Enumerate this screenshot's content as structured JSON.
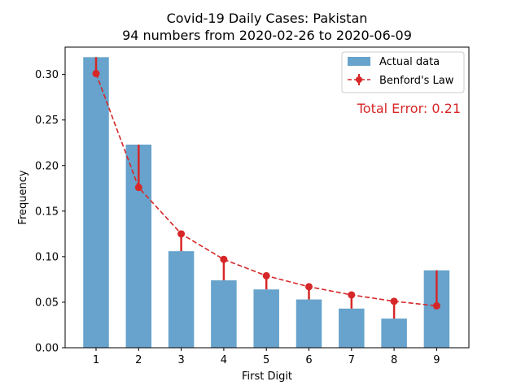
{
  "chart_data": {
    "type": "bar",
    "title": "Covid-19 Daily Cases: Pakistan",
    "subtitle": "94 numbers from 2020-02-26 to 2020-06-09",
    "xlabel": "First Digit",
    "ylabel": "Frequency",
    "categories": [
      "1",
      "2",
      "3",
      "4",
      "5",
      "6",
      "7",
      "8",
      "9"
    ],
    "ylim": [
      0,
      0.33
    ],
    "yticks": [
      "0.00",
      "0.05",
      "0.10",
      "0.15",
      "0.20",
      "0.25",
      "0.30"
    ],
    "ytick_values": [
      0,
      0.05,
      0.1,
      0.15,
      0.2,
      0.25,
      0.3
    ],
    "series": [
      {
        "name": "Actual data",
        "type": "bar",
        "color": "#1f77b4",
        "values": [
          0.319,
          0.223,
          0.106,
          0.074,
          0.064,
          0.053,
          0.043,
          0.032,
          0.085
        ]
      },
      {
        "name": "Benford's Law",
        "type": "line",
        "style": "dashed",
        "color": "#d62728",
        "values": [
          0.301,
          0.176,
          0.125,
          0.097,
          0.079,
          0.067,
          0.058,
          0.051,
          0.046
        ]
      }
    ],
    "annotation": "Total Error: 0.21",
    "annotation_color": "#d62728",
    "legend_position": "top-right",
    "grid": false
  }
}
